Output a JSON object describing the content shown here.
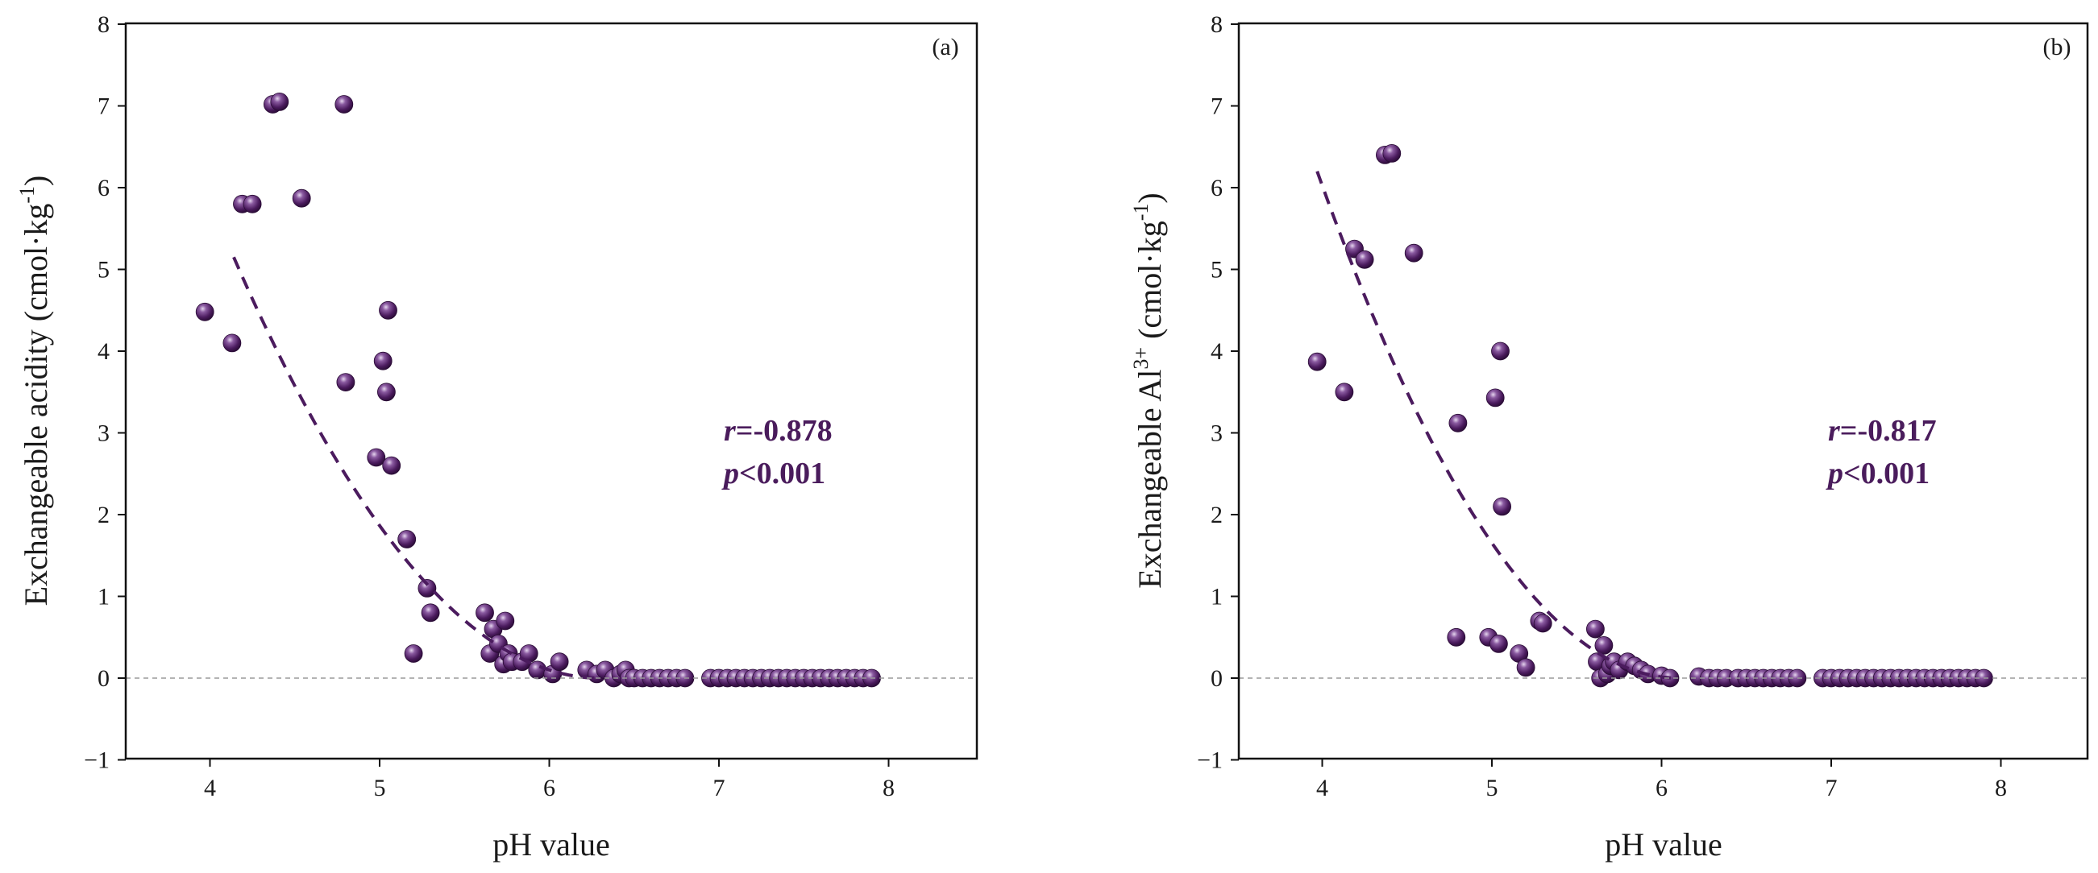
{
  "colors": {
    "point": "#4b1b5e",
    "point_highlight": "#d9c6e6",
    "fit": "#4b1b5e",
    "zero_line": "#9a9a9a"
  },
  "chart_data": [
    {
      "type": "scatter",
      "panel": "(a)",
      "xlabel": "pH value",
      "ylabel": {
        "main": "Exchangeable acidity  (cmol·kg",
        "sup": "-1",
        "tail": ")"
      },
      "xlim": [
        3.5,
        8.5
      ],
      "ylim": [
        -1,
        8
      ],
      "xticks": [
        4,
        5,
        6,
        7,
        8
      ],
      "yticks": [
        -1,
        0,
        1,
        2,
        3,
        4,
        5,
        6,
        7,
        8
      ],
      "tick_labels_x": [
        "4",
        "5",
        "6",
        "7",
        "8"
      ],
      "tick_labels_y": [
        "−1",
        "0",
        "1",
        "2",
        "3",
        "4",
        "5",
        "6",
        "7",
        "8"
      ],
      "stats": {
        "r_var": "r",
        "r_text": "=-0.878",
        "p_var": "p",
        "p_text": "<0.001"
      },
      "fit": {
        "type": "quadratic_then_zero",
        "x_start": 4.14,
        "x_vertex": 6.3,
        "y_start": 5.15
      },
      "x": [
        3.97,
        4.13,
        4.19,
        4.25,
        4.37,
        4.41,
        4.54,
        4.79,
        4.8,
        4.98,
        5.02,
        5.04,
        5.05,
        5.07,
        5.16,
        5.2,
        5.28,
        5.3,
        5.62,
        5.65,
        5.67,
        5.7,
        5.73,
        5.74,
        5.76,
        5.78,
        5.84,
        5.88,
        5.93,
        6.02,
        6.06,
        6.22,
        6.28,
        6.33,
        6.38,
        6.42,
        6.45,
        6.47,
        6.5,
        6.55,
        6.6,
        6.65,
        6.7,
        6.75,
        6.8,
        6.95,
        7.0,
        7.05,
        7.1,
        7.15,
        7.2,
        7.25,
        7.3,
        7.35,
        7.4,
        7.45,
        7.5,
        7.55,
        7.6,
        7.65,
        7.7,
        7.75,
        7.8,
        7.85,
        7.9
      ],
      "y": [
        4.48,
        4.1,
        5.8,
        5.8,
        7.02,
        7.05,
        5.87,
        7.02,
        3.62,
        2.7,
        3.88,
        3.5,
        4.5,
        2.6,
        1.7,
        0.3,
        1.1,
        0.8,
        0.8,
        0.3,
        0.6,
        0.42,
        0.17,
        0.7,
        0.3,
        0.2,
        0.2,
        0.3,
        0.1,
        0.05,
        0.2,
        0.1,
        0.05,
        0.1,
        0.0,
        0.05,
        0.1,
        0.0,
        0.0,
        0.0,
        0.0,
        0.0,
        0.0,
        0.0,
        0.0,
        0.0,
        0.0,
        0.0,
        0.0,
        0.0,
        0.0,
        0.0,
        0.0,
        0.0,
        0.0,
        0.0,
        0.0,
        0.0,
        0.0,
        0.0,
        0.0,
        0.0,
        0.0,
        0.0,
        0.0
      ]
    },
    {
      "type": "scatter",
      "panel": "(b)",
      "xlabel": "pH value",
      "ylabel": {
        "main": "Exchangeable Al",
        "sup": "3+",
        "mid": " (cmol·kg",
        "sup2": "-1",
        "tail": ")"
      },
      "xlim": [
        3.5,
        8.5
      ],
      "ylim": [
        -1,
        8
      ],
      "xticks": [
        4,
        5,
        6,
        7,
        8
      ],
      "yticks": [
        -1,
        0,
        1,
        2,
        3,
        4,
        5,
        6,
        7,
        8
      ],
      "tick_labels_x": [
        "4",
        "5",
        "6",
        "7",
        "8"
      ],
      "tick_labels_y": [
        "−1",
        "0",
        "1",
        "2",
        "3",
        "4",
        "5",
        "6",
        "7",
        "8"
      ],
      "stats": {
        "r_var": "r",
        "r_text": "=-0.817",
        "p_var": "p",
        "p_text": "<0.001"
      },
      "fit": {
        "type": "quadratic_then_zero",
        "x_start": 3.97,
        "x_vertex": 6.1,
        "y_start": 6.2
      },
      "x": [
        3.97,
        4.13,
        4.19,
        4.25,
        4.37,
        4.41,
        4.54,
        4.79,
        4.8,
        4.98,
        5.02,
        5.04,
        5.05,
        5.06,
        5.16,
        5.2,
        5.28,
        5.3,
        5.61,
        5.62,
        5.64,
        5.66,
        5.68,
        5.7,
        5.72,
        5.75,
        5.8,
        5.84,
        5.88,
        5.92,
        6.0,
        6.05,
        6.22,
        6.28,
        6.33,
        6.38,
        6.45,
        6.5,
        6.55,
        6.6,
        6.65,
        6.7,
        6.75,
        6.8,
        6.95,
        7.0,
        7.05,
        7.1,
        7.15,
        7.2,
        7.25,
        7.3,
        7.35,
        7.4,
        7.45,
        7.5,
        7.55,
        7.6,
        7.65,
        7.7,
        7.75,
        7.8,
        7.85,
        7.9
      ],
      "y": [
        3.87,
        3.5,
        5.25,
        5.12,
        6.4,
        6.42,
        5.2,
        0.5,
        3.12,
        0.5,
        3.43,
        0.42,
        4.0,
        2.1,
        0.3,
        0.13,
        0.7,
        0.67,
        0.6,
        0.2,
        0.0,
        0.4,
        0.05,
        0.15,
        0.2,
        0.1,
        0.2,
        0.15,
        0.1,
        0.05,
        0.03,
        0.0,
        0.02,
        0.0,
        0.0,
        0.0,
        0.0,
        0.0,
        0.0,
        0.0,
        0.0,
        0.0,
        0.0,
        0.0,
        0.0,
        0.0,
        0.0,
        0.0,
        0.0,
        0.0,
        0.0,
        0.0,
        0.0,
        0.0,
        0.0,
        0.0,
        0.0,
        0.0,
        0.0,
        0.0,
        0.0,
        0.0,
        0.0,
        0.0
      ]
    }
  ]
}
